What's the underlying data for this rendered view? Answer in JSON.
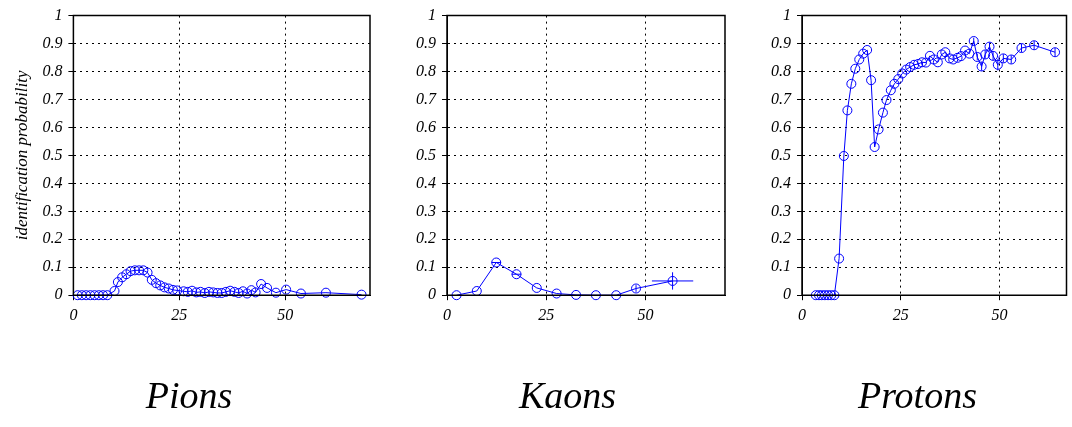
{
  "chart_data": [
    {
      "type": "line",
      "title": "Pions",
      "ylabel": "identification probability",
      "color": "#0000ff",
      "marker": "circle",
      "grid": true,
      "x": [
        1,
        2,
        3,
        4,
        5,
        6,
        7,
        8,
        9.7,
        10.5,
        11.5,
        12.5,
        13.5,
        14.5,
        15.5,
        16.5,
        17.5,
        18.5,
        19.5,
        20.5,
        21.5,
        22.5,
        23.5,
        24.5,
        26,
        27,
        28,
        29,
        30,
        31,
        32,
        33,
        34,
        35,
        36,
        37,
        38,
        39,
        40,
        41,
        42,
        43,
        44.3,
        45.7,
        47.8,
        50.2,
        53.7,
        59.6,
        68
      ],
      "values": [
        0,
        0,
        0,
        0,
        0,
        0,
        0,
        0,
        0.015,
        0.047,
        0.064,
        0.075,
        0.086,
        0.089,
        0.089,
        0.089,
        0.081,
        0.055,
        0.043,
        0.035,
        0.028,
        0.024,
        0.019,
        0.017,
        0.014,
        0.012,
        0.016,
        0.01,
        0.012,
        0.008,
        0.012,
        0.01,
        0.008,
        0.008,
        0.012,
        0.016,
        0.012,
        0.008,
        0.014,
        0.006,
        0.018,
        0.01,
        0.04,
        0.026,
        0.009,
        0.02,
        0.006,
        0.009,
        0.002
      ],
      "xlim": [
        0,
        70
      ],
      "ylim": [
        0,
        1
      ],
      "xticks": [
        0,
        25,
        50
      ],
      "yticks": [
        0,
        0.1,
        0.2,
        0.3,
        0.4,
        0.5,
        0.6,
        0.7,
        0.8,
        0.9,
        1
      ]
    },
    {
      "type": "line",
      "title": "Kaons",
      "color": "#0000ff",
      "marker": "circle",
      "grid": true,
      "x": [
        2.4,
        7.5,
        12.4,
        17.5,
        22.6,
        27.6,
        32.5,
        37.5,
        42.6,
        47.6,
        56.8
      ],
      "values": [
        0,
        0.015,
        0.117,
        0.075,
        0.026,
        0.006,
        0.001,
        0,
        0,
        0.024,
        0.051
      ],
      "errors": [
        null,
        null,
        null,
        null,
        null,
        null,
        null,
        null,
        null,
        0.012,
        0.031
      ],
      "xerrors": [
        null,
        null,
        1.2,
        1.2,
        null,
        null,
        null,
        null,
        null,
        null,
        5.2
      ],
      "xlim": [
        0,
        70
      ],
      "ylim": [
        0,
        1
      ],
      "xticks": [
        0,
        25,
        50
      ],
      "yticks": [
        0,
        0.1,
        0.2,
        0.3,
        0.4,
        0.5,
        0.6,
        0.7,
        0.8,
        0.9,
        1
      ]
    },
    {
      "type": "line",
      "title": "Protons",
      "color": "#0000ff",
      "marker": "circle",
      "grid": true,
      "x": [
        3.5,
        4.3,
        5,
        5.8,
        6.6,
        7.4,
        8.2,
        9.4,
        10.6,
        11.5,
        12.5,
        13.5,
        14.5,
        15.5,
        16.5,
        17.5,
        18.4,
        19.4,
        20.5,
        21.4,
        22.5,
        23.4,
        24.4,
        25.4,
        26.4,
        27.4,
        28.4,
        29.4,
        30.4,
        31.4,
        32.4,
        33.4,
        34.4,
        35.4,
        36.3,
        37.4,
        38.3,
        39.4,
        40.3,
        41.3,
        42.4,
        43.5,
        44.4,
        45.5,
        46.4,
        47.5,
        48.4,
        49.6,
        51,
        53,
        55.6,
        58.8,
        64.1
      ],
      "values": [
        0,
        0,
        0,
        0,
        0,
        0,
        0,
        0.131,
        0.498,
        0.661,
        0.756,
        0.81,
        0.843,
        0.864,
        0.877,
        0.769,
        0.53,
        0.593,
        0.653,
        0.698,
        0.733,
        0.756,
        0.773,
        0.793,
        0.807,
        0.816,
        0.824,
        0.827,
        0.833,
        0.832,
        0.856,
        0.843,
        0.833,
        0.861,
        0.869,
        0.847,
        0.843,
        0.849,
        0.855,
        0.875,
        0.864,
        0.909,
        0.852,
        0.818,
        0.861,
        0.889,
        0.856,
        0.824,
        0.847,
        0.843,
        0.884,
        0.894,
        0.869
      ],
      "errors": [
        null,
        null,
        null,
        null,
        null,
        null,
        null,
        null,
        null,
        null,
        null,
        null,
        null,
        null,
        null,
        null,
        null,
        null,
        null,
        null,
        null,
        null,
        null,
        null,
        null,
        null,
        null,
        null,
        null,
        null,
        null,
        null,
        null,
        null,
        null,
        null,
        null,
        null,
        null,
        null,
        null,
        0.012,
        0.012,
        0.015,
        0.015,
        0.015,
        0.015,
        0.02,
        0.015,
        0.015,
        0.015,
        0.015,
        0.015
      ],
      "xlim": [
        0,
        67
      ],
      "ylim": [
        0,
        1
      ],
      "xticks": [
        0,
        25,
        50
      ],
      "yticks": [
        0,
        0.1,
        0.2,
        0.3,
        0.4,
        0.5,
        0.6,
        0.7,
        0.8,
        0.9,
        1
      ]
    }
  ]
}
